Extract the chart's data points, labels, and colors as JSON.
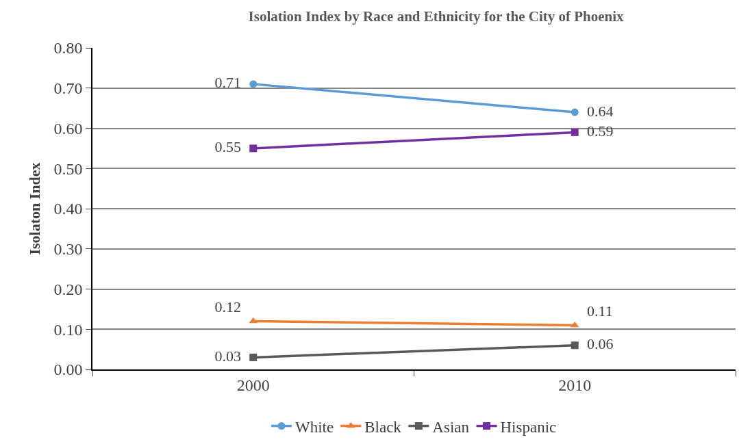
{
  "chart_data": {
    "type": "line",
    "title": "Isolation Index by Race and Ethnicity for the City of Phoenix",
    "ylabel": "Isolaton Index",
    "categories": [
      "2000",
      "2010"
    ],
    "series": [
      {
        "name": "White",
        "color": "#5b9bd5",
        "marker": "circle",
        "values": [
          0.71,
          0.64
        ]
      },
      {
        "name": "Black",
        "color": "#ed7d31",
        "marker": "triangle",
        "values": [
          0.12,
          0.11
        ]
      },
      {
        "name": "Asian",
        "color": "#595959",
        "marker": "square",
        "values": [
          0.03,
          0.06
        ]
      },
      {
        "name": "Hispanic",
        "color": "#7030a0",
        "marker": "square",
        "values": [
          0.55,
          0.59
        ]
      }
    ],
    "ylim": [
      0,
      0.8
    ],
    "yticks": [
      {
        "value": 0,
        "label": "0.00"
      },
      {
        "value": 0.1,
        "label": "0.10"
      },
      {
        "value": 0.2,
        "label": "0.20"
      },
      {
        "value": 0.3,
        "label": "0.30"
      },
      {
        "value": 0.4,
        "label": "0.40"
      },
      {
        "value": 0.5,
        "label": "0.50"
      },
      {
        "value": 0.6,
        "label": "0.60"
      },
      {
        "value": 0.7,
        "label": "0.70"
      },
      {
        "value": 0.8,
        "label": "0.80"
      }
    ],
    "grid": "y",
    "legend": "bottom",
    "data_labels": true
  }
}
